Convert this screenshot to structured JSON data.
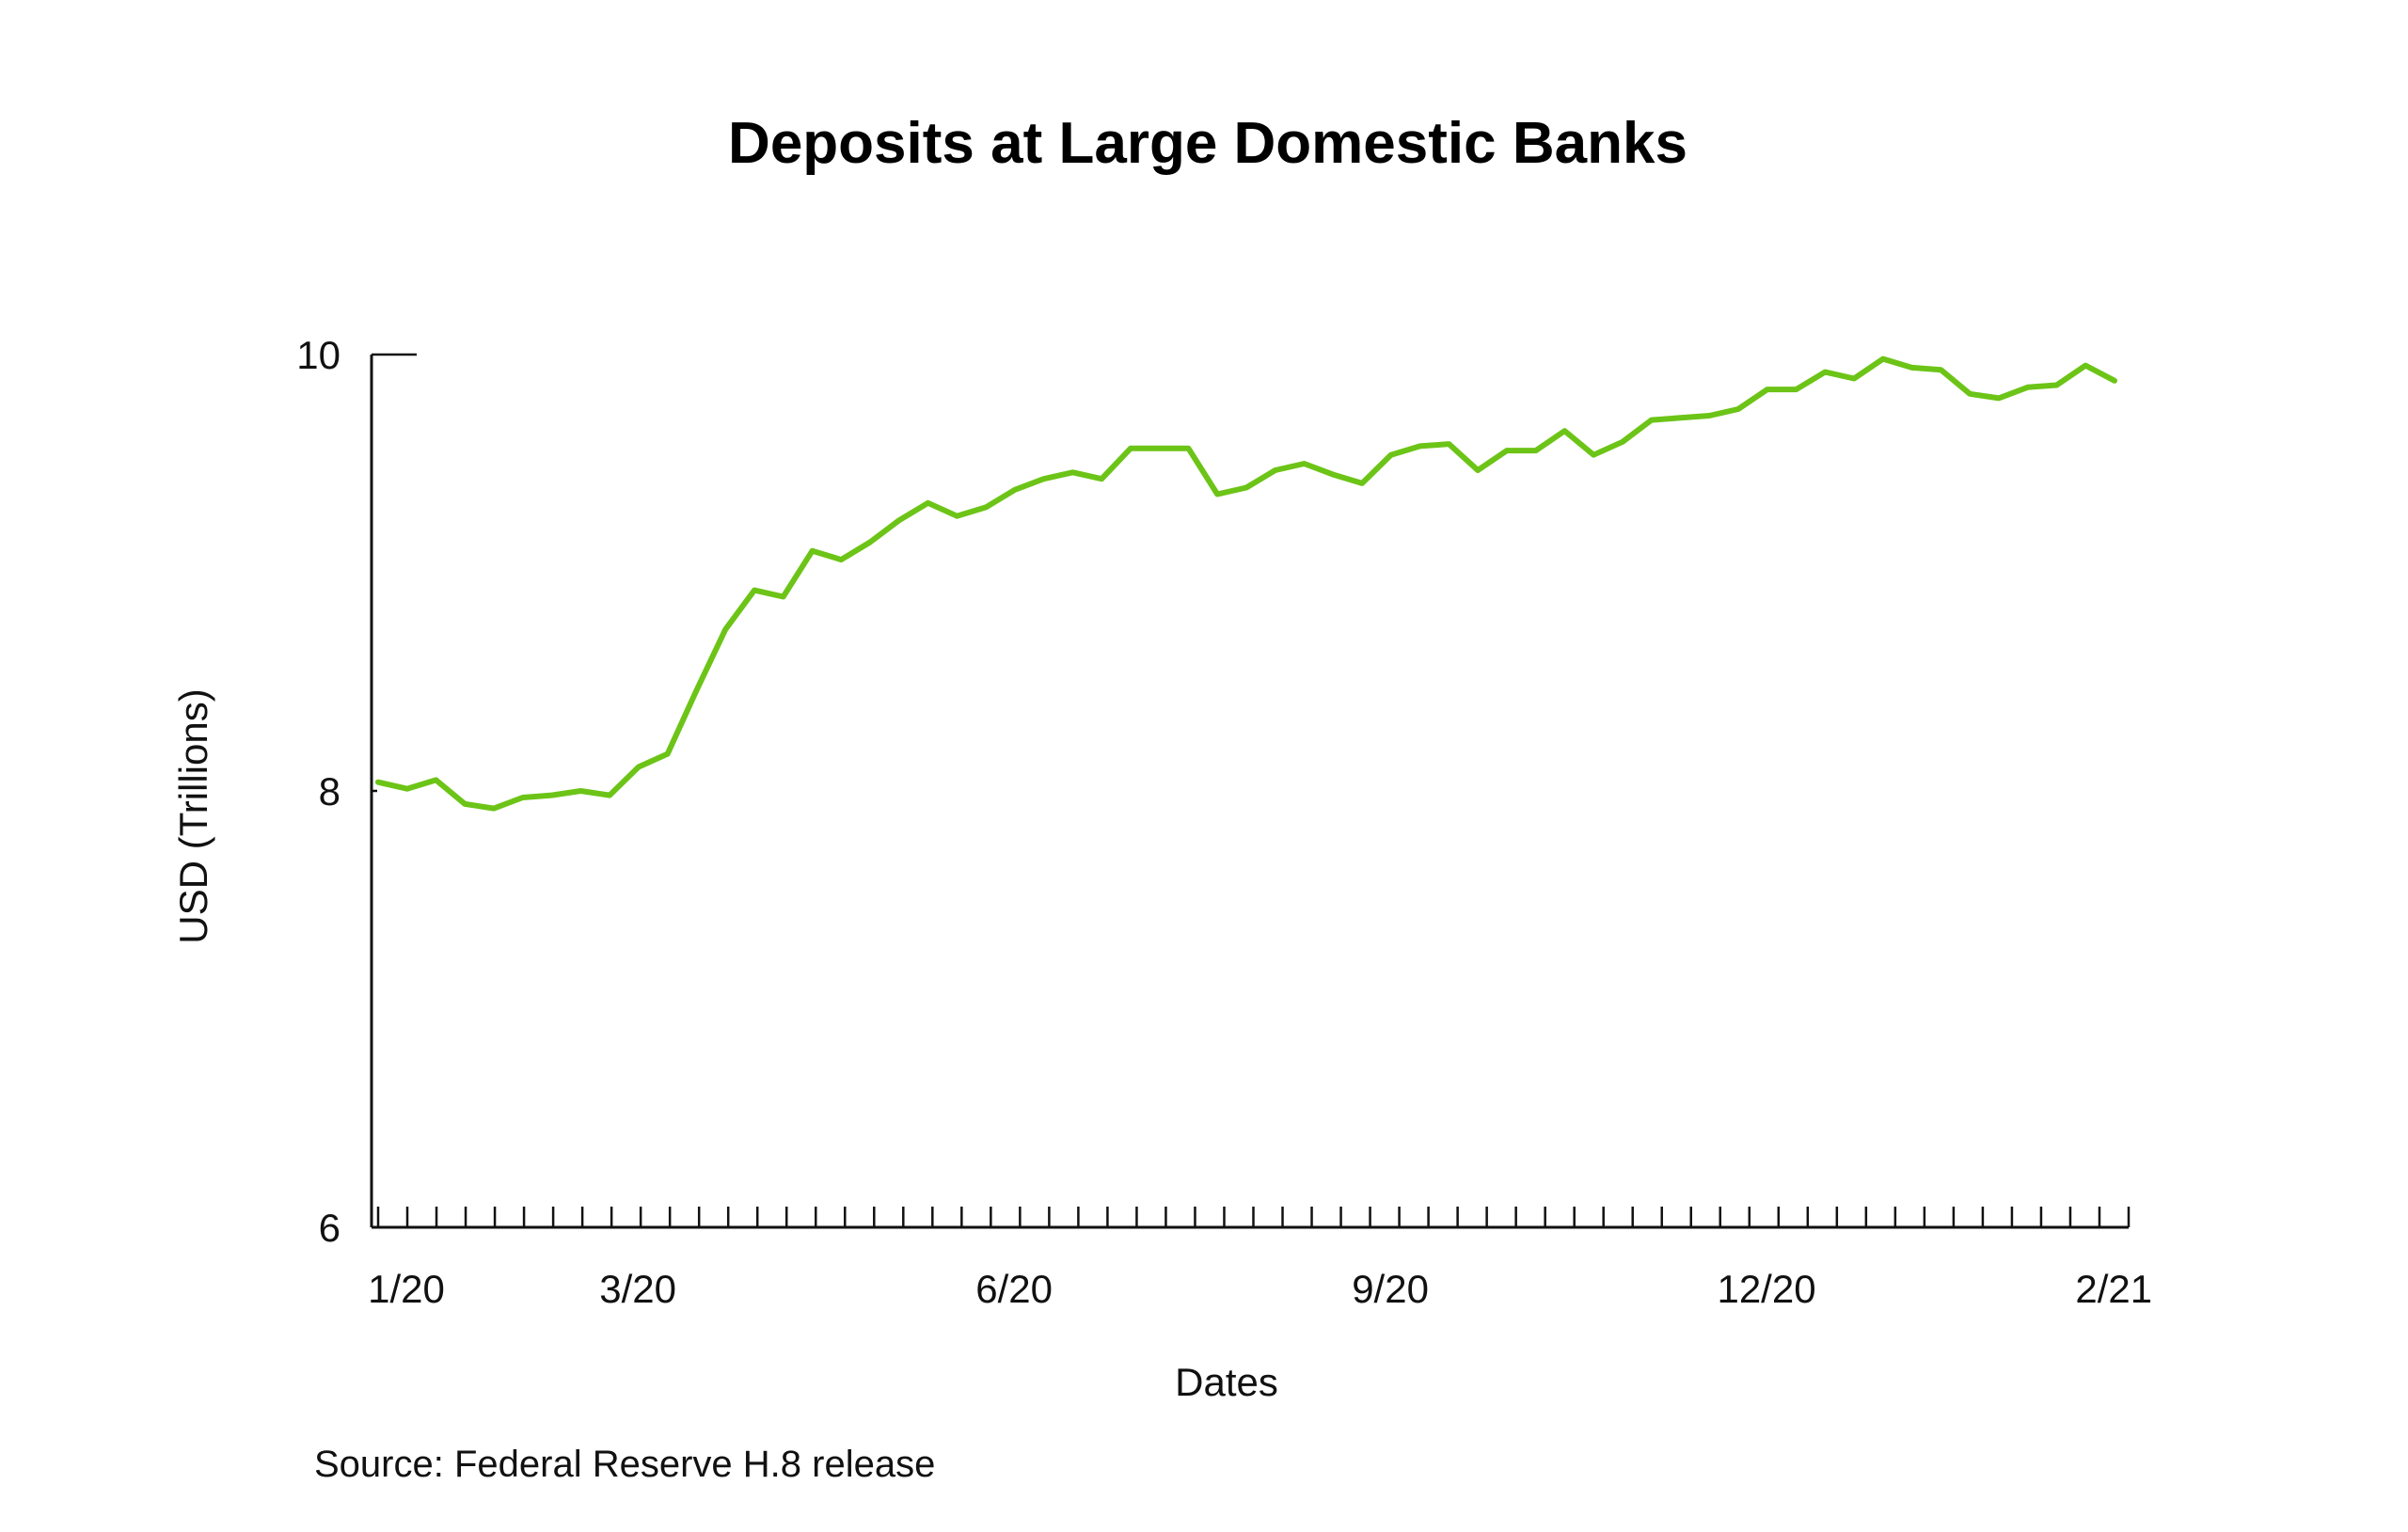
{
  "chart_data": {
    "type": "line",
    "title": "Deposits at Large Domestic Banks",
    "xlabel": "Dates",
    "ylabel": "USD (Trillions)",
    "source": "Source: Federal Reserve H.8 release",
    "ylim": [
      6,
      10
    ],
    "y_ticks": [
      "10",
      "8",
      "6"
    ],
    "y_tick_values": [
      10,
      8,
      6
    ],
    "x_tick_labels": [
      {
        "label": "1/20",
        "week": 1
      },
      {
        "label": "3/20",
        "week": 9
      },
      {
        "label": "6/20",
        "week": 22
      },
      {
        "label": "9/20",
        "week": 35
      },
      {
        "label": "12/20",
        "week": 48
      },
      {
        "label": "2/21",
        "week": 60
      }
    ],
    "minor_tick_count": 61,
    "grid": false,
    "legend": "none",
    "series": [
      {
        "color": "#6cc417",
        "values": [
          8.04,
          8.01,
          8.05,
          7.94,
          7.92,
          7.97,
          7.98,
          8.0,
          7.98,
          8.11,
          8.17,
          8.46,
          8.74,
          8.92,
          8.89,
          9.1,
          9.06,
          9.14,
          9.24,
          9.32,
          9.26,
          9.3,
          9.38,
          9.43,
          9.46,
          9.43,
          9.57,
          9.57,
          9.57,
          9.36,
          9.39,
          9.47,
          9.5,
          9.45,
          9.41,
          9.54,
          9.58,
          9.59,
          9.47,
          9.56,
          9.56,
          9.65,
          9.54,
          9.6,
          9.7,
          9.71,
          9.72,
          9.75,
          9.84,
          9.84,
          9.92,
          9.89,
          9.98,
          9.94,
          9.93,
          9.82,
          9.8,
          9.85,
          9.86,
          9.95,
          9.88
        ]
      }
    ]
  }
}
